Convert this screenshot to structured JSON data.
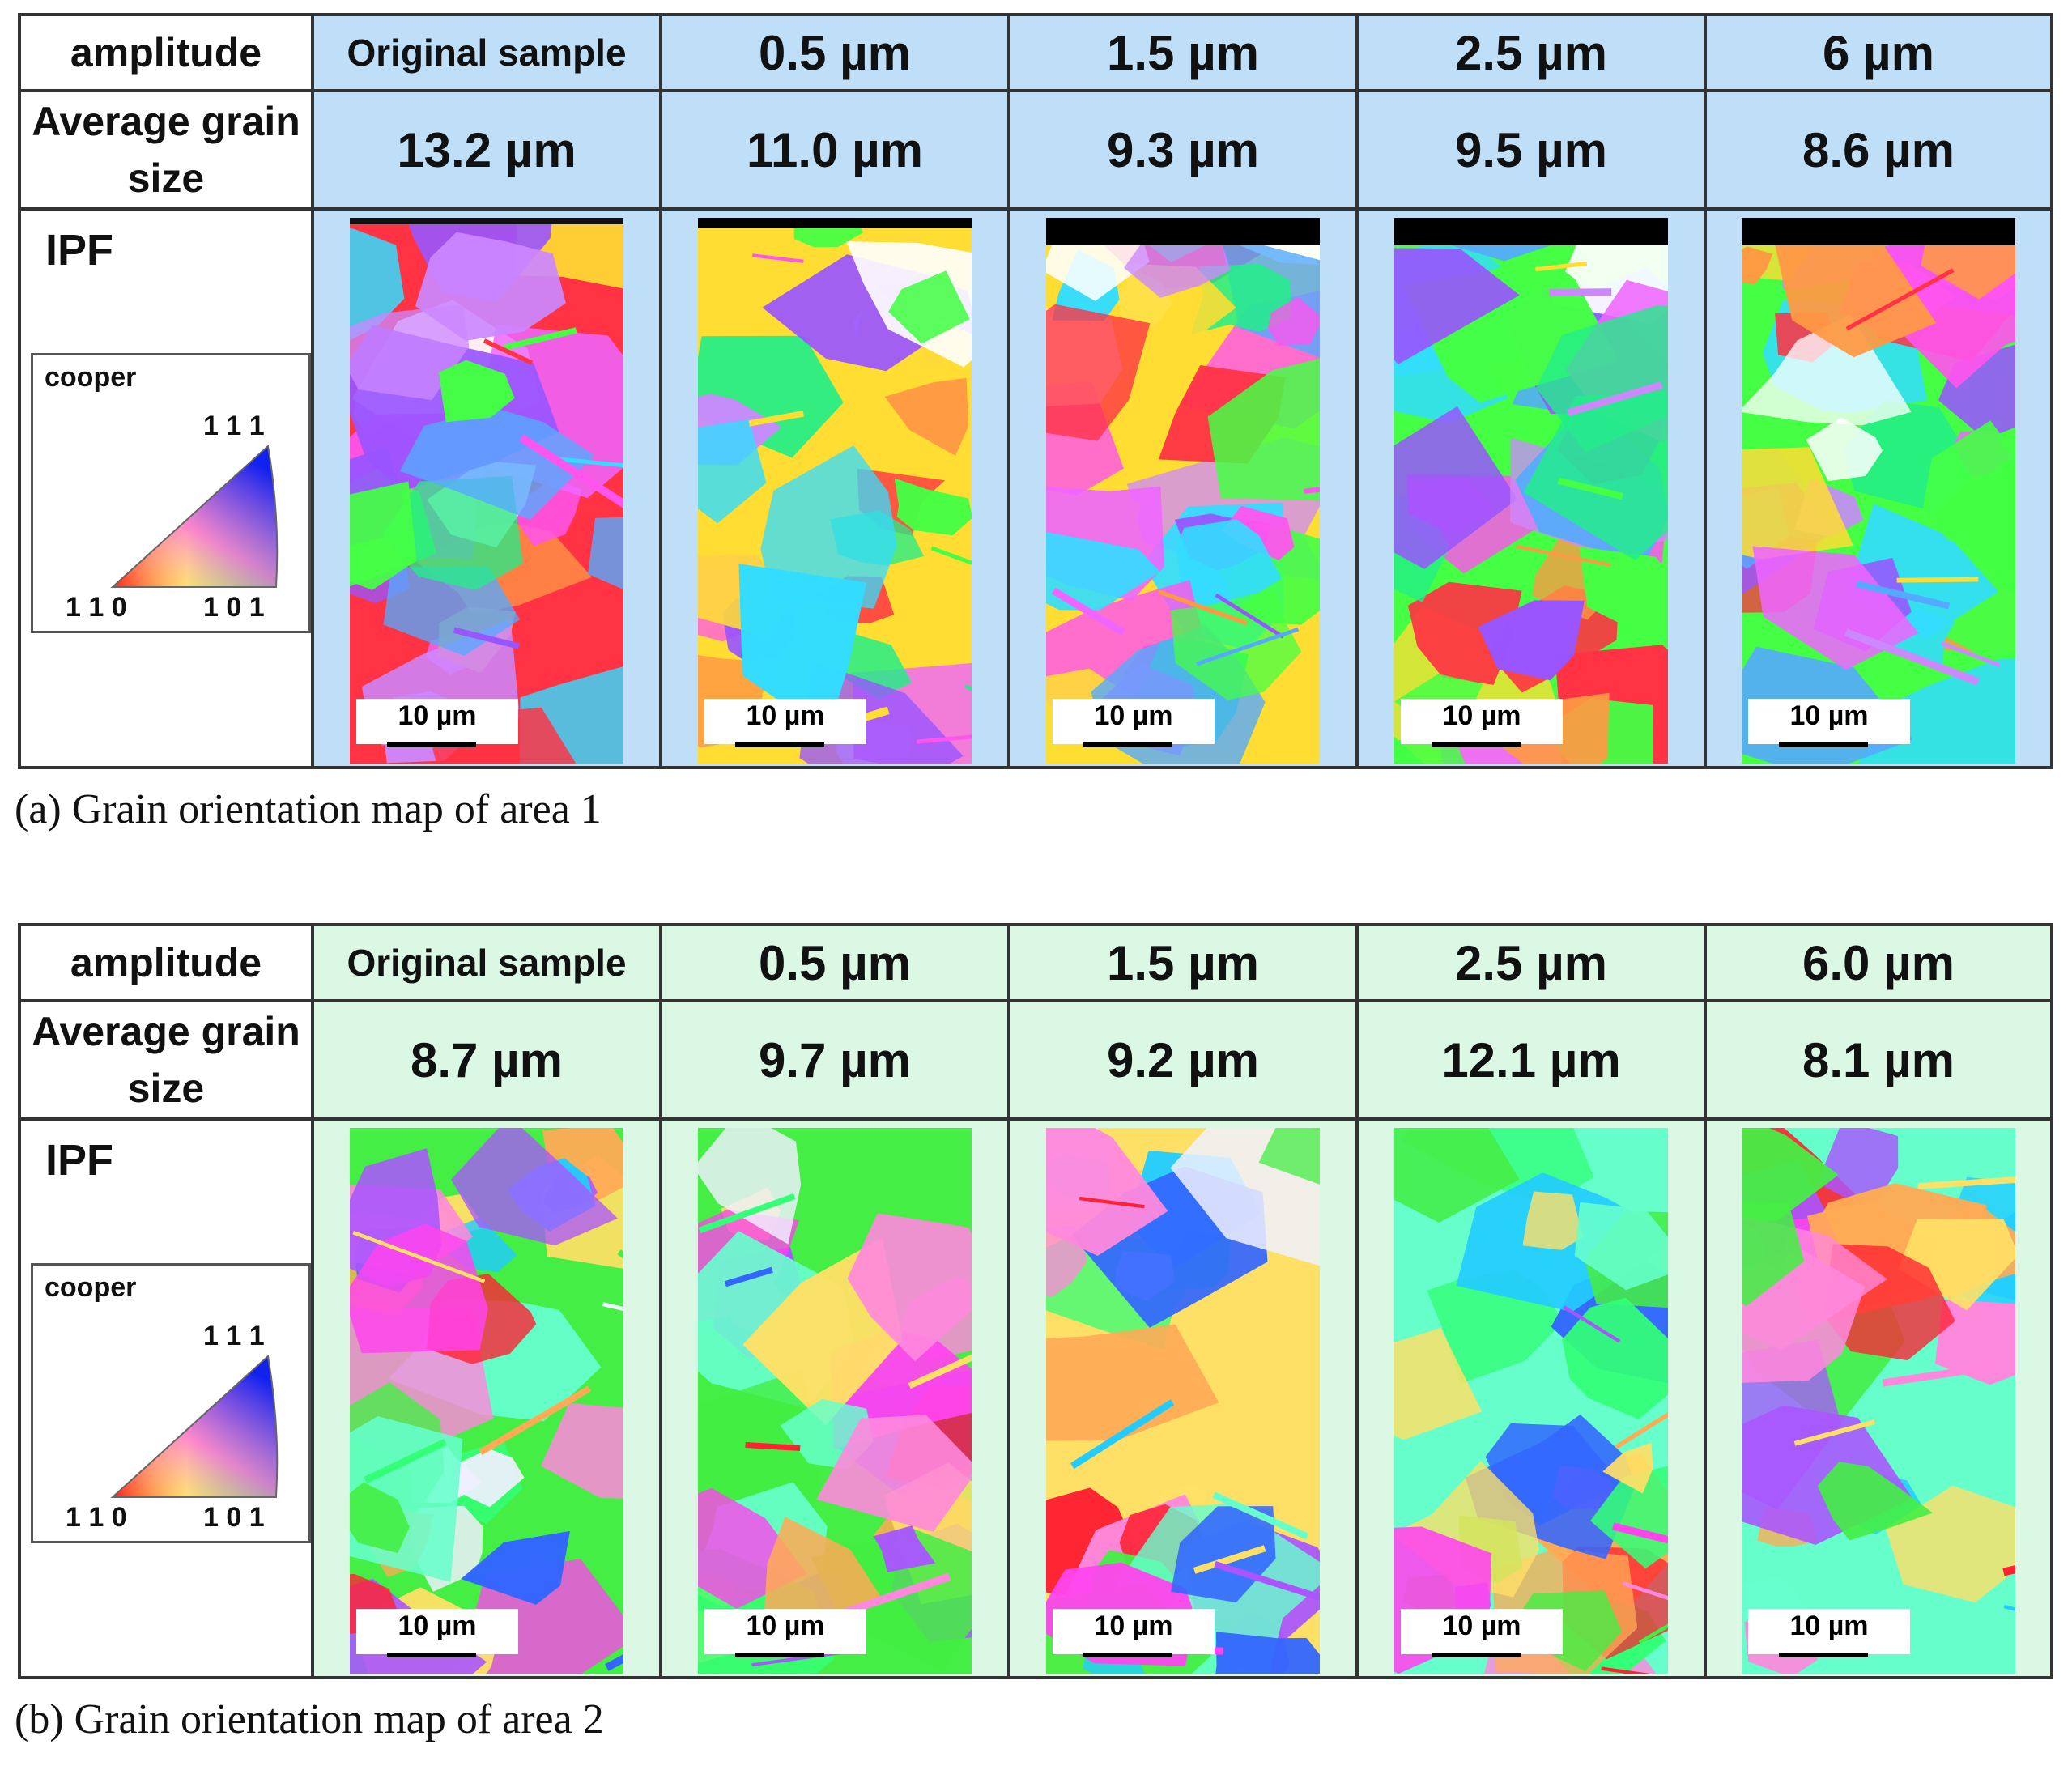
{
  "figures": [
    {
      "id": "a",
      "header_label": "amplitude",
      "size_label": "Average grain size",
      "ipf_label": "IPF",
      "legend": {
        "material": "cooper",
        "top": "1 1 1",
        "left": "1 1 0",
        "right": "1 0 1"
      },
      "columns": [
        {
          "amplitude": "Original sample",
          "grain_size": "13.2 µm",
          "scale_bar": "10 µm"
        },
        {
          "amplitude": "0.5 µm",
          "grain_size": "11.0 µm",
          "scale_bar": "10 µm"
        },
        {
          "amplitude": "1.5 µm",
          "grain_size": "9.3 µm",
          "scale_bar": "10 µm"
        },
        {
          "amplitude": "2.5 µm",
          "grain_size": "9.5 µm",
          "scale_bar": "10 µm"
        },
        {
          "amplitude": "6 µm",
          "grain_size": "8.6 µm",
          "scale_bar": "10 µm"
        }
      ],
      "tint_color": "#bfdff9",
      "caption": "(a) Grain orientation map of area 1"
    },
    {
      "id": "b",
      "header_label": "amplitude",
      "size_label": "Average grain size",
      "ipf_label": "IPF",
      "legend": {
        "material": "cooper",
        "top": "1 1 1",
        "left": "1 1 0",
        "right": "1 0 1"
      },
      "columns": [
        {
          "amplitude": "Original sample",
          "grain_size": "8.7 µm",
          "scale_bar": "10 µm"
        },
        {
          "amplitude": "0.5 µm",
          "grain_size": "9.7 µm",
          "scale_bar": "10 µm"
        },
        {
          "amplitude": "1.5 µm",
          "grain_size": "9.2 µm",
          "scale_bar": "10 µm"
        },
        {
          "amplitude": "2.5 µm",
          "grain_size": "12.1 µm",
          "scale_bar": "10 µm"
        },
        {
          "amplitude": "6.0 µm",
          "grain_size": "8.1 µm",
          "scale_bar": "10 µm"
        }
      ],
      "tint_color": "#dbf8e4",
      "caption": "(b) Grain orientation map of area 2"
    }
  ]
}
